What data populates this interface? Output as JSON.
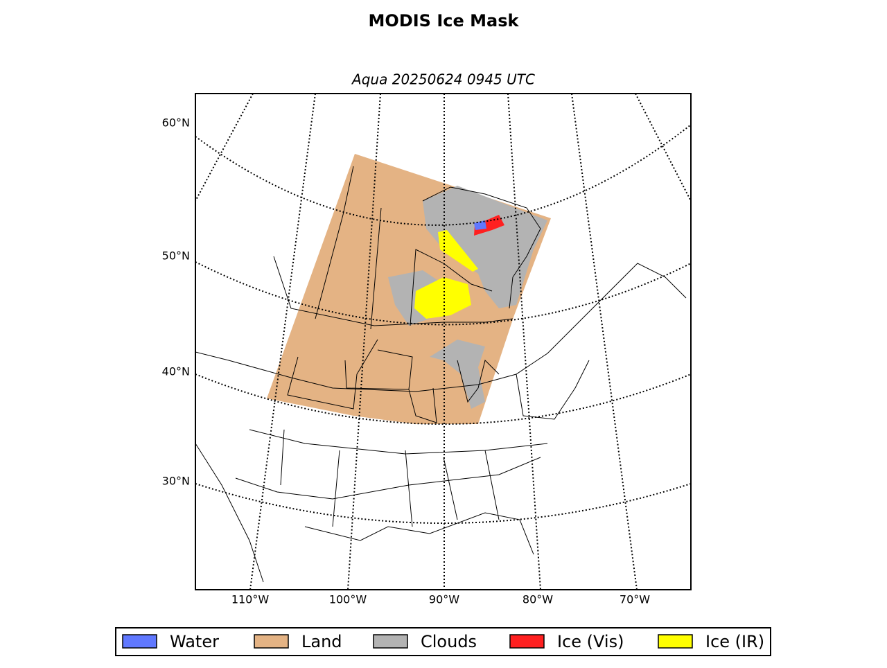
{
  "title": "MODIS Ice Mask",
  "subtitle": "Aqua 20250624 0945 UTC",
  "lat_labels": [
    "60°N",
    "50°N",
    "40°N",
    "30°N"
  ],
  "lon_labels": [
    "110°W",
    "100°W",
    "90°W",
    "80°W",
    "70°W"
  ],
  "legend": [
    {
      "label": "Water",
      "color": "#6078ff"
    },
    {
      "label": "Land",
      "color": "#e4b384"
    },
    {
      "label": "Clouds",
      "color": "#b3b3b3"
    },
    {
      "label": "Ice (Vis)",
      "color": "#ff2020"
    },
    {
      "label": "Ice (IR)",
      "color": "#ffff00"
    }
  ]
}
